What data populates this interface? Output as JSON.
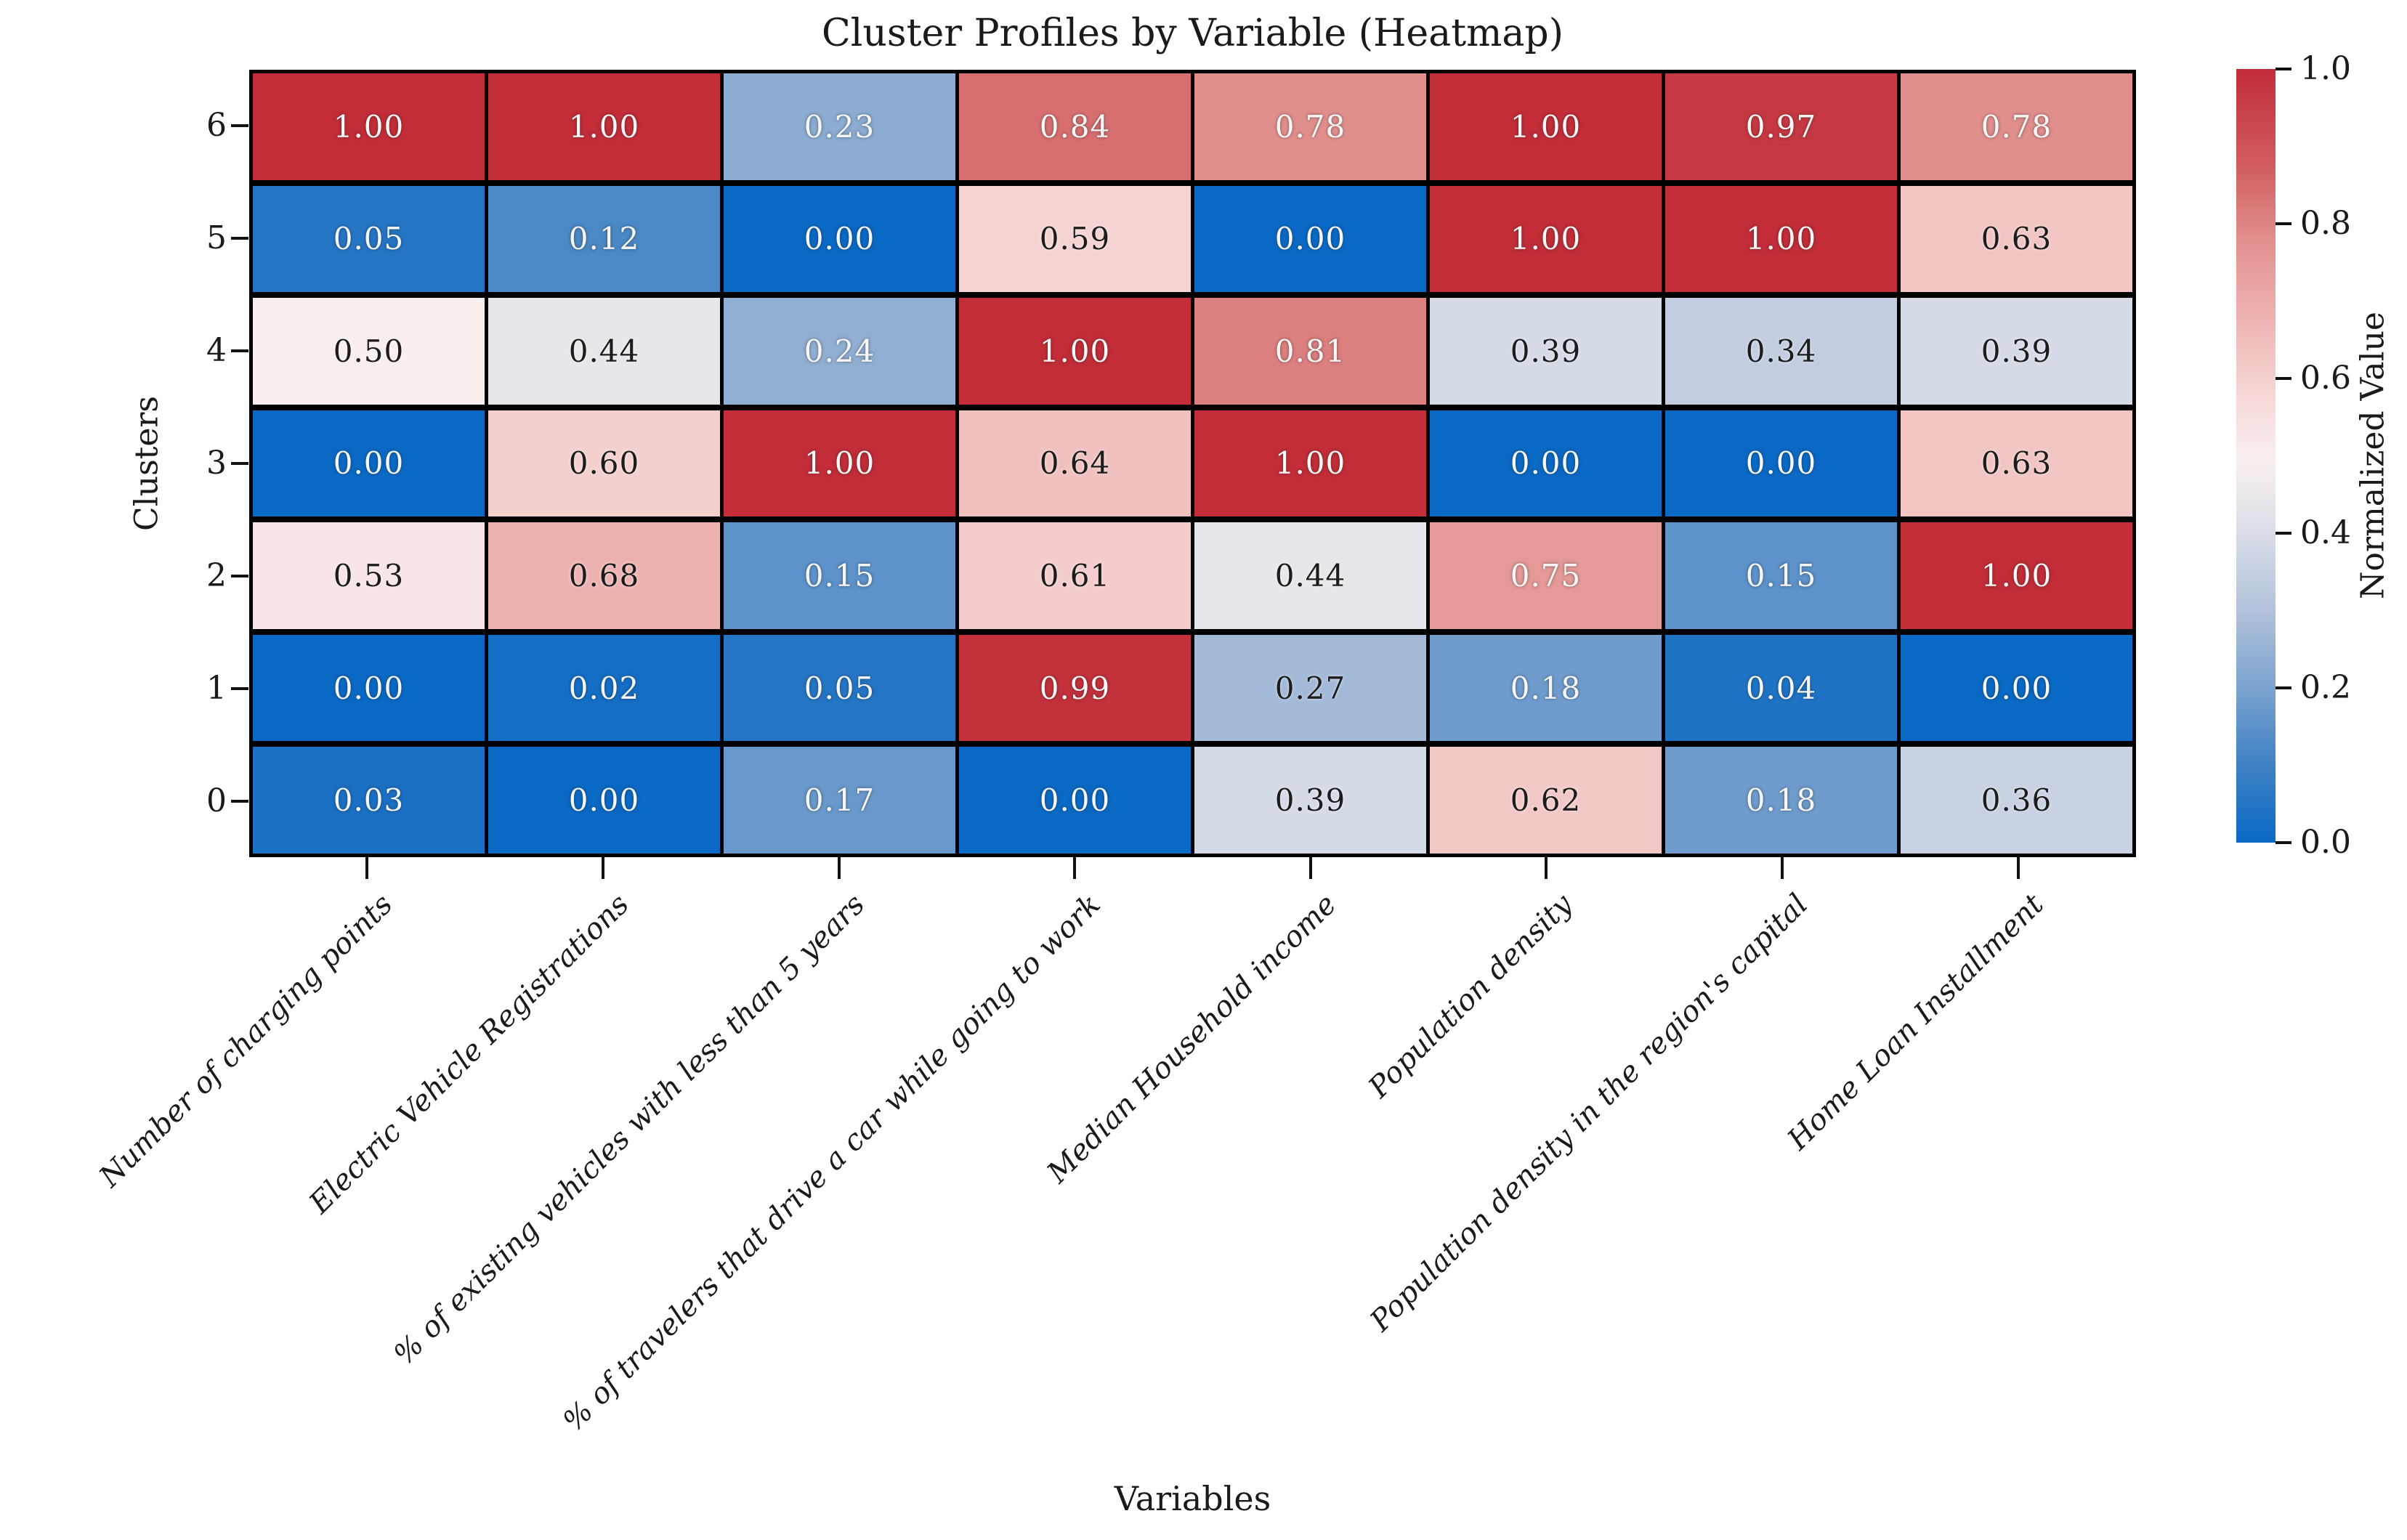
{
  "title": "Cluster Profiles by Variable (Heatmap)",
  "chart_data": {
    "type": "heatmap",
    "title": "Cluster Profiles by Variable (Heatmap)",
    "xlabel": "Variables",
    "ylabel": "Clusters",
    "colorbar_label": "Normalized Value",
    "colorbar_ticks": [
      "1.0",
      "0.8",
      "0.6",
      "0.4",
      "0.2",
      "0.0"
    ],
    "vmin": 0.0,
    "vmax": 1.0,
    "rows": [
      "6",
      "5",
      "4",
      "3",
      "2",
      "1",
      "0"
    ],
    "categories": [
      "Number of charging points",
      "Electric Vehicle Registrations",
      "% of existing vehicles with less than 5 years",
      "% of travelers that drive a car while going to work",
      "Median Household income",
      "Population density",
      "Population density in the region's capital",
      "Home Loan Installment"
    ],
    "values": [
      [
        1.0,
        1.0,
        0.23,
        0.84,
        0.78,
        1.0,
        0.97,
        0.78
      ],
      [
        0.05,
        0.12,
        0.0,
        0.59,
        0.0,
        1.0,
        1.0,
        0.63
      ],
      [
        0.5,
        0.44,
        0.24,
        1.0,
        0.81,
        0.39,
        0.34,
        0.39
      ],
      [
        0.0,
        0.6,
        1.0,
        0.64,
        1.0,
        0.0,
        0.0,
        0.63
      ],
      [
        0.53,
        0.68,
        0.15,
        0.61,
        0.44,
        0.75,
        0.15,
        1.0
      ],
      [
        0.0,
        0.02,
        0.05,
        0.99,
        0.27,
        0.18,
        0.04,
        0.0
      ],
      [
        0.03,
        0.0,
        0.17,
        0.0,
        0.39,
        0.62,
        0.18,
        0.36
      ]
    ],
    "colors": {
      "grid_line": "#000000",
      "annotation_light": "#f7f7f7",
      "annotation_dark": "#1c1c1c",
      "colormap_stops": [
        [
          0.0,
          "#0a69c5"
        ],
        [
          0.1,
          "#3f81c4"
        ],
        [
          0.2,
          "#7ba3cf"
        ],
        [
          0.3,
          "#b2c2da"
        ],
        [
          0.4,
          "#d9dde8"
        ],
        [
          0.47,
          "#f2ecec"
        ],
        [
          0.5,
          "#f9eeee"
        ],
        [
          0.58,
          "#f5d7d6"
        ],
        [
          0.68,
          "#edb2b0"
        ],
        [
          0.78,
          "#e18f8d"
        ],
        [
          0.88,
          "#d05a5e"
        ],
        [
          1.0,
          "#c22d38"
        ]
      ]
    },
    "legend_position": "right-colorbar",
    "grid": false
  }
}
